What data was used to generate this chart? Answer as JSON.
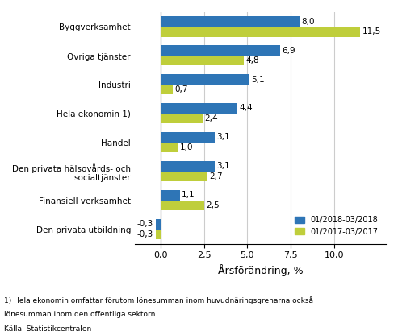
{
  "categories": [
    "Byggverksamhet",
    "Övriga tjänster",
    "Industri",
    "Hela ekonomin 1)",
    "Handel",
    "Den privata hälsovårds- och\nsocialtjänster",
    "Finansiell verksamhet",
    "Den privata utbildning"
  ],
  "series1_values": [
    8.0,
    6.9,
    5.1,
    4.4,
    3.1,
    3.1,
    1.1,
    -0.3
  ],
  "series2_values": [
    11.5,
    4.8,
    0.7,
    2.4,
    1.0,
    2.7,
    2.5,
    -0.3
  ],
  "series1_label": "01/2018-03/2018",
  "series2_label": "01/2017-03/2017",
  "series1_color": "#2E75B6",
  "series2_color": "#BFCE3B",
  "xlabel": "Årsförändring, %",
  "xlim": [
    -1.5,
    13.0
  ],
  "xticks": [
    0.0,
    2.5,
    5.0,
    7.5,
    10.0
  ],
  "xticklabels": [
    "0,0",
    "2,5",
    "5,0",
    "7,5",
    "10,0"
  ],
  "footnote1": "1) Hela ekonomin omfattar förutom lönesumman inom huvudnäringsgrenarna också",
  "footnote2": "lönesumman inom den offentliga sektorn",
  "footnote3": "Källa: Statistikcentralen",
  "bar_height": 0.35,
  "background_color": "#ffffff",
  "grid_color": "#cccccc",
  "label_fontsize": 7.5,
  "tick_fontsize": 8,
  "xlabel_fontsize": 9
}
